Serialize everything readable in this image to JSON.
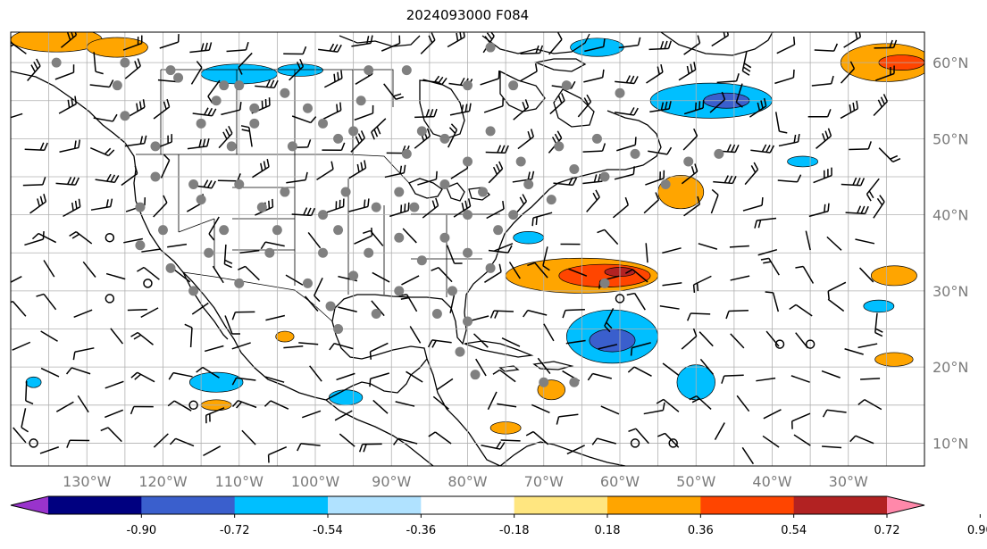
{
  "title": "2024093000 F084",
  "map": {
    "lon_range": [
      -140,
      -20
    ],
    "lat_range": [
      7,
      64
    ],
    "lon_labels": [
      "130°W",
      "120°W",
      "110°W",
      "100°W",
      "90°W",
      "80°W",
      "70°W",
      "60°W",
      "50°W",
      "40°W",
      "30°W"
    ],
    "lon_values": [
      -130,
      -120,
      -110,
      -100,
      -90,
      -80,
      -70,
      -60,
      -50,
      -40,
      -30
    ],
    "lat_labels": [
      "10°N",
      "20°N",
      "30°N",
      "40°N",
      "50°N",
      "60°N"
    ],
    "lat_values": [
      10,
      20,
      30,
      40,
      50,
      60
    ],
    "grid": true,
    "land_outline_color": "#000000",
    "station_marker_color": "#808080",
    "wind_barb_color": "#000000"
  },
  "colorbar": {
    "bounds": [
      "-0.90",
      "-0.72",
      "-0.54",
      "-0.36",
      "-0.18",
      "0.18",
      "0.36",
      "0.54",
      "0.72",
      "0.90"
    ],
    "colors": [
      "#9933cc",
      "#000080",
      "#3a5fcd",
      "#00bfff",
      "#b0e2ff",
      "#ffffff",
      "#ffe680",
      "#ffa500",
      "#ff4500",
      "#b22222",
      "#ff88aa"
    ],
    "extend": "both"
  },
  "anomaly_blobs": [
    {
      "level": "0.36",
      "lon": -134,
      "lat": 63,
      "rx": 6,
      "ry": 1.6
    },
    {
      "level": "0.36",
      "lon": -126,
      "lat": 62,
      "rx": 4,
      "ry": 1.3
    },
    {
      "level": "0.36",
      "lon": -25,
      "lat": 60,
      "rx": 6,
      "ry": 2.5
    },
    {
      "level": "0.54",
      "lon": -23,
      "lat": 60,
      "rx": 3,
      "ry": 1
    },
    {
      "level": "-0.36",
      "lon": -63,
      "lat": 62,
      "rx": 3.5,
      "ry": 1.2
    },
    {
      "level": "-0.36",
      "lon": -110,
      "lat": 58.5,
      "rx": 5,
      "ry": 1.3
    },
    {
      "level": "-0.36",
      "lon": -102,
      "lat": 59,
      "rx": 3,
      "ry": 0.8
    },
    {
      "level": "-0.36",
      "lon": -48,
      "lat": 55,
      "rx": 8,
      "ry": 2.3
    },
    {
      "level": "-0.54",
      "lon": -46,
      "lat": 55,
      "rx": 3,
      "ry": 1
    },
    {
      "level": "0.36",
      "lon": -52,
      "lat": 43,
      "rx": 3,
      "ry": 2.2
    },
    {
      "level": "0.36",
      "lon": -65,
      "lat": 32,
      "rx": 10,
      "ry": 2.3
    },
    {
      "level": "0.54",
      "lon": -62,
      "lat": 32,
      "rx": 6,
      "ry": 1.5
    },
    {
      "level": "0.72",
      "lon": -60,
      "lat": 32.5,
      "rx": 2,
      "ry": 0.6
    },
    {
      "level": "-0.36",
      "lon": -61,
      "lat": 24,
      "rx": 6,
      "ry": 3.5
    },
    {
      "level": "-0.54",
      "lon": -61,
      "lat": 23.5,
      "rx": 3,
      "ry": 1.5
    },
    {
      "level": "-0.36",
      "lon": -50,
      "lat": 18,
      "rx": 2.5,
      "ry": 2.3
    },
    {
      "level": "-0.36",
      "lon": -113,
      "lat": 18,
      "rx": 3.5,
      "ry": 1.3
    },
    {
      "level": "-0.36",
      "lon": -96,
      "lat": 16,
      "rx": 2.2,
      "ry": 1
    },
    {
      "level": "0.36",
      "lon": -113,
      "lat": 15,
      "rx": 2,
      "ry": 0.7
    },
    {
      "level": "0.36",
      "lon": -69,
      "lat": 17,
      "rx": 1.8,
      "ry": 1.3
    },
    {
      "level": "0.36",
      "lon": -75,
      "lat": 12,
      "rx": 2,
      "ry": 0.8
    },
    {
      "level": "-0.36",
      "lon": -72,
      "lat": 37,
      "rx": 2,
      "ry": 0.8
    },
    {
      "level": "0.36",
      "lon": -24,
      "lat": 32,
      "rx": 3,
      "ry": 1.3
    },
    {
      "level": "-0.36",
      "lon": -26,
      "lat": 28,
      "rx": 2,
      "ry": 0.8
    },
    {
      "level": "-0.36",
      "lon": -36,
      "lat": 47,
      "rx": 2,
      "ry": 0.7
    },
    {
      "level": "0.36",
      "lon": -24,
      "lat": 21,
      "rx": 2.5,
      "ry": 0.9
    },
    {
      "level": "-0.36",
      "lon": -137,
      "lat": 18,
      "rx": 1,
      "ry": 0.7
    },
    {
      "level": "0.36",
      "lon": -104,
      "lat": 24,
      "rx": 1.2,
      "ry": 0.7
    }
  ],
  "stations": [
    [
      -134,
      60
    ],
    [
      -125,
      60
    ],
    [
      -119,
      59
    ],
    [
      -112,
      57
    ],
    [
      -118,
      58
    ],
    [
      -126,
      57
    ],
    [
      -110,
      57
    ],
    [
      -104,
      56
    ],
    [
      -113,
      55
    ],
    [
      -108,
      54
    ],
    [
      -101,
      54
    ],
    [
      -94,
      55
    ],
    [
      -93,
      59
    ],
    [
      -88,
      59
    ],
    [
      -77,
      62
    ],
    [
      -80,
      57
    ],
    [
      -74,
      57
    ],
    [
      -67,
      57
    ],
    [
      -60,
      56
    ],
    [
      -125,
      53
    ],
    [
      -115,
      52
    ],
    [
      -108,
      52
    ],
    [
      -99,
      52
    ],
    [
      -95,
      51
    ],
    [
      -86,
      51
    ],
    [
      -83,
      50
    ],
    [
      -77,
      51
    ],
    [
      -68,
      49
    ],
    [
      -63,
      50
    ],
    [
      -58,
      48
    ],
    [
      -51,
      47
    ],
    [
      -121,
      49
    ],
    [
      -111,
      49
    ],
    [
      -103,
      49
    ],
    [
      -97,
      50
    ],
    [
      -88,
      48
    ],
    [
      -80,
      47
    ],
    [
      -73,
      47
    ],
    [
      -66,
      46
    ],
    [
      -62,
      45
    ],
    [
      -121,
      45
    ],
    [
      -116,
      44
    ],
    [
      -110,
      44
    ],
    [
      -104,
      43
    ],
    [
      -96,
      43
    ],
    [
      -89,
      43
    ],
    [
      -83,
      44
    ],
    [
      -78,
      43
    ],
    [
      -72,
      44
    ],
    [
      -69,
      42
    ],
    [
      -123,
      41
    ],
    [
      -115,
      42
    ],
    [
      -107,
      41
    ],
    [
      -99,
      40
    ],
    [
      -92,
      41
    ],
    [
      -87,
      41
    ],
    [
      -80,
      40
    ],
    [
      -74,
      40
    ],
    [
      -120,
      38
    ],
    [
      -112,
      38
    ],
    [
      -105,
      38
    ],
    [
      -97,
      38
    ],
    [
      -89,
      37
    ],
    [
      -83,
      37
    ],
    [
      -76,
      38
    ],
    [
      -123,
      36
    ],
    [
      -114,
      35
    ],
    [
      -106,
      35
    ],
    [
      -99,
      35
    ],
    [
      -93,
      35
    ],
    [
      -86,
      34
    ],
    [
      -80,
      35
    ],
    [
      -77,
      33
    ],
    [
      -119,
      33
    ],
    [
      -110,
      31
    ],
    [
      -101,
      31
    ],
    [
      -95,
      32
    ],
    [
      -89,
      30
    ],
    [
      -82,
      30
    ],
    [
      -98,
      28
    ],
    [
      -92,
      27
    ],
    [
      -84,
      27
    ],
    [
      -80,
      26
    ],
    [
      -97,
      25
    ],
    [
      -81,
      22
    ],
    [
      -79,
      19
    ],
    [
      -70,
      18
    ],
    [
      -66,
      18
    ],
    [
      -62,
      31
    ],
    [
      -54,
      44
    ],
    [
      -47,
      48
    ],
    [
      -116,
      30
    ]
  ],
  "calm_circles": [
    [
      -127,
      37
    ],
    [
      -122,
      31
    ],
    [
      -39,
      23
    ],
    [
      -35,
      23
    ],
    [
      -60,
      29
    ],
    [
      -127,
      29
    ],
    [
      -137,
      10
    ],
    [
      -116,
      15
    ],
    [
      -58,
      10
    ],
    [
      -53,
      10
    ]
  ]
}
